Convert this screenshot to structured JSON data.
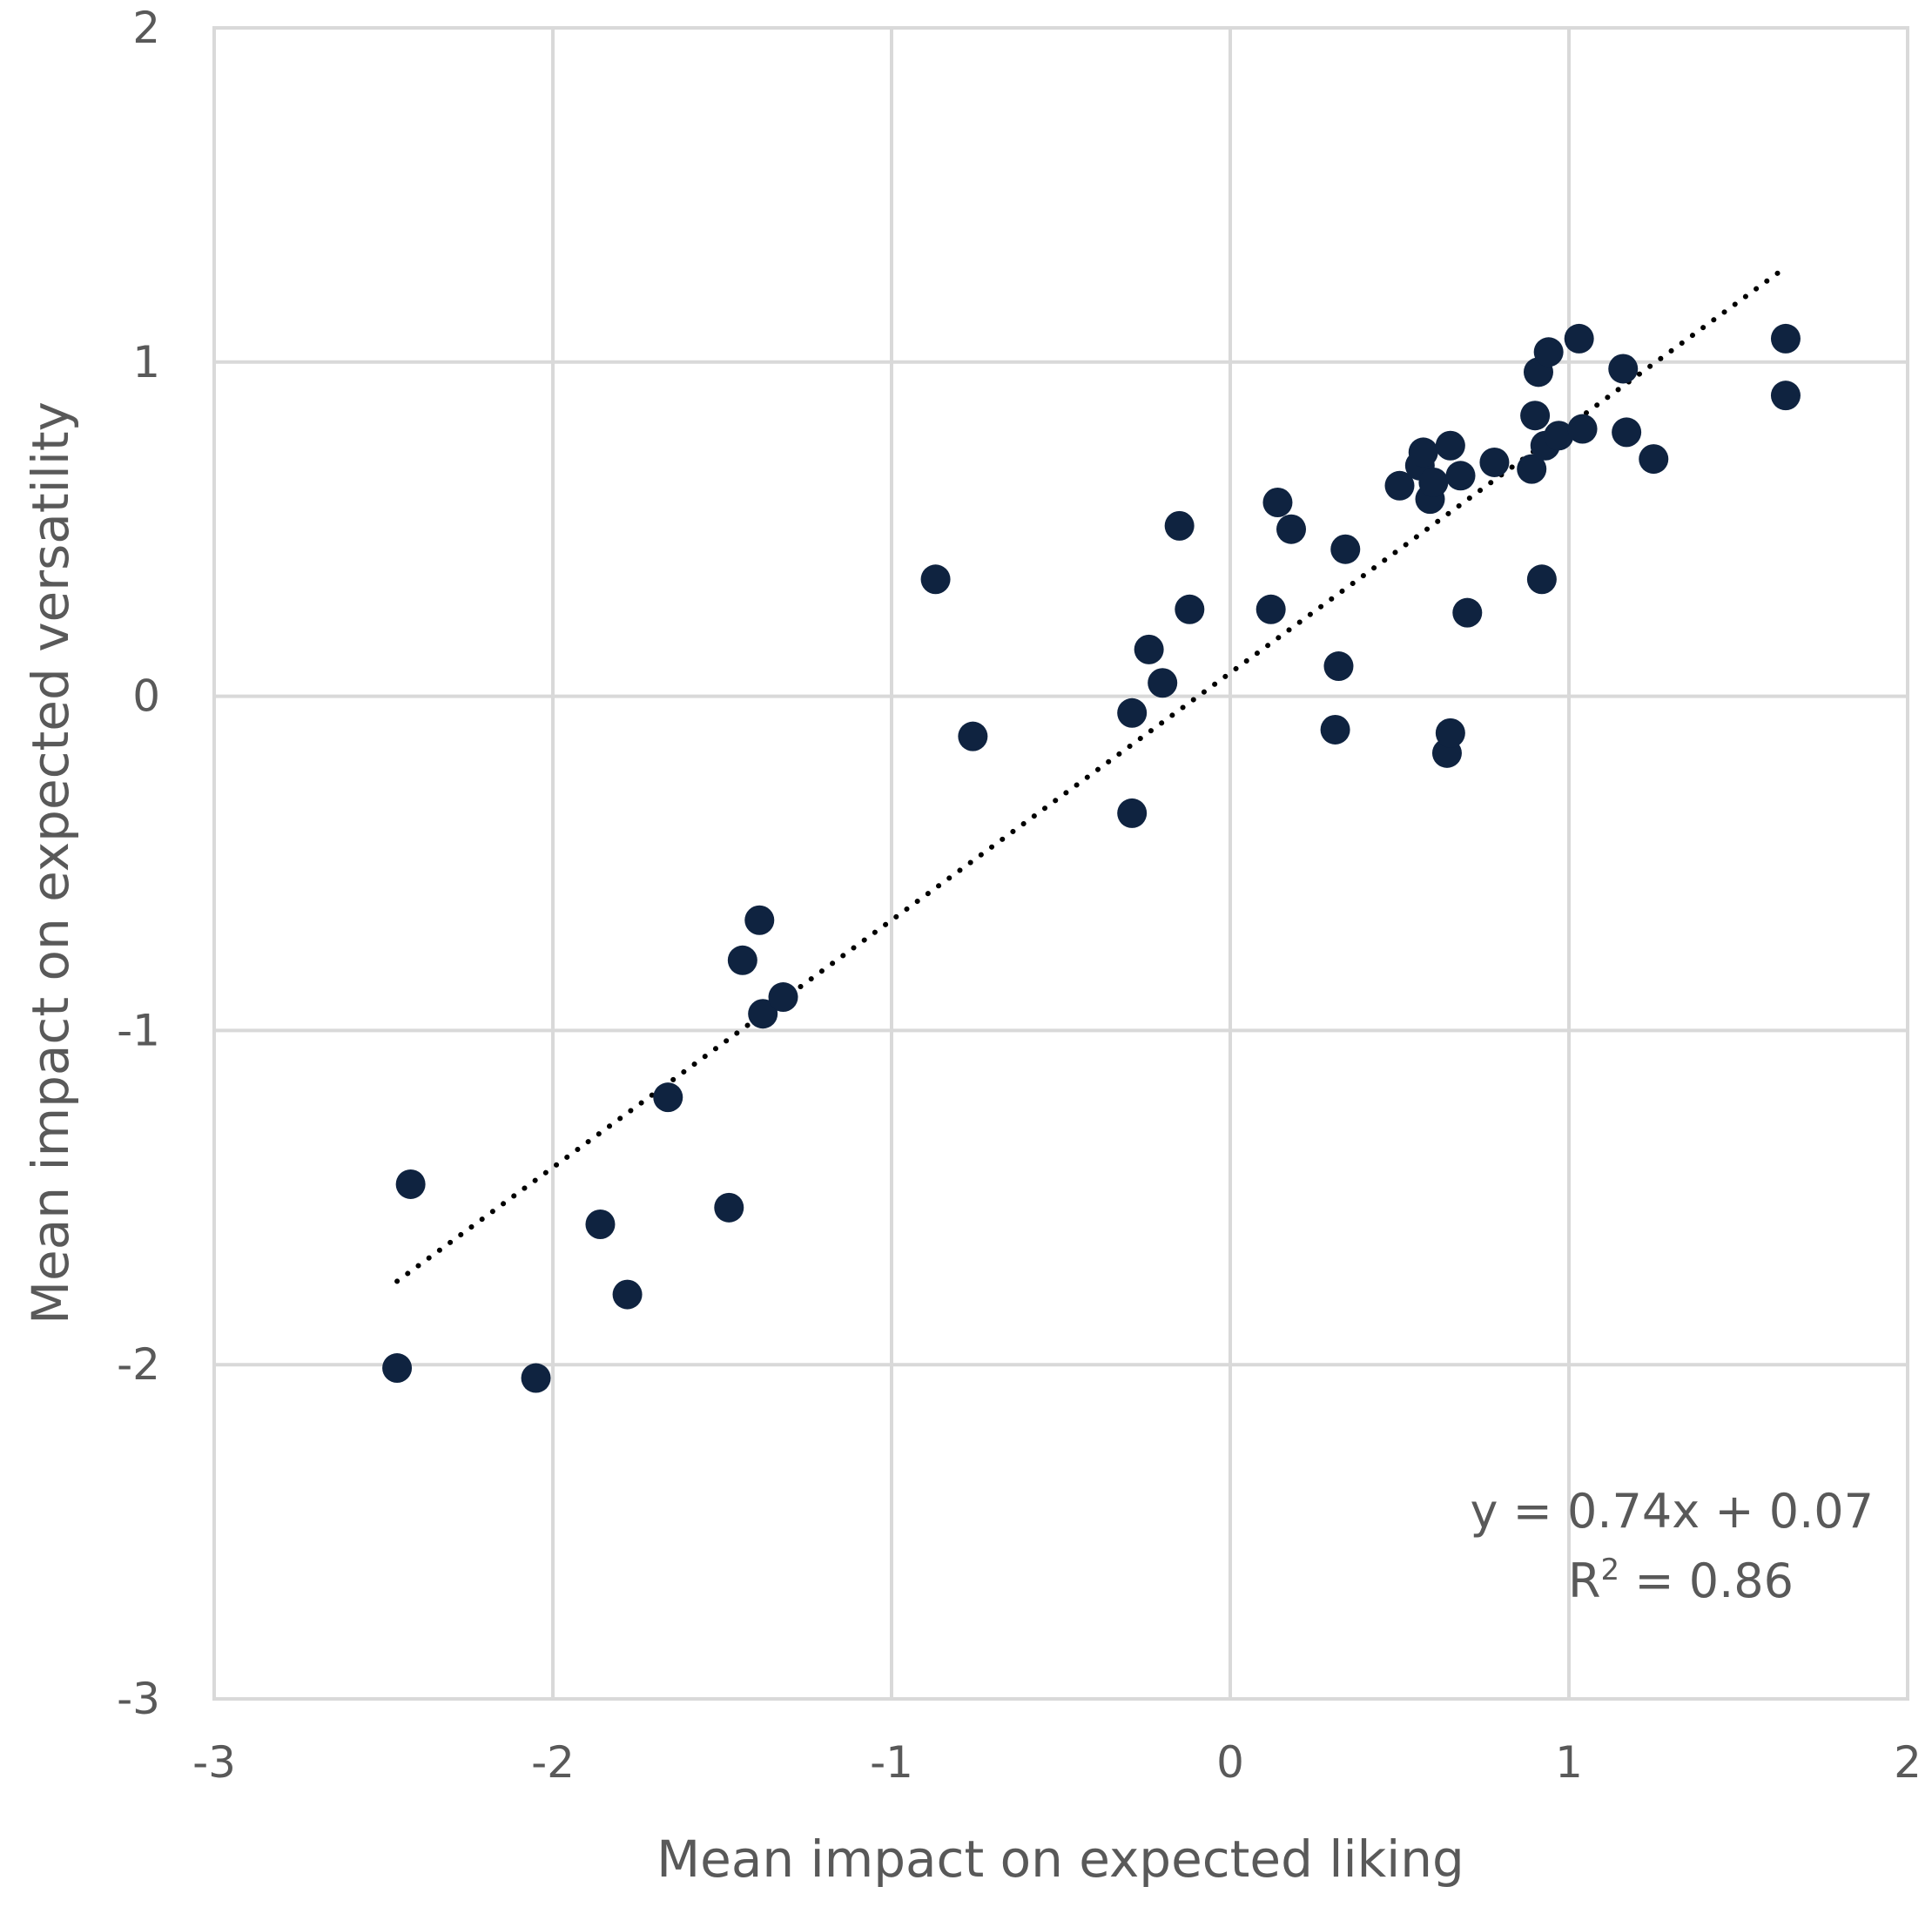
{
  "chart_data": {
    "type": "scatter",
    "title": "",
    "xlabel": "Mean impact on expected liking",
    "ylabel": "Mean impact on expected versatility",
    "xlim": [
      -3,
      2
    ],
    "ylim": [
      -3,
      2
    ],
    "xticks": [
      -3,
      -2,
      -1,
      0,
      1,
      2
    ],
    "yticks": [
      -3,
      -2,
      -1,
      0,
      1,
      2
    ],
    "grid": true,
    "legend": "none",
    "marker_color": "#0f2340",
    "points": [
      {
        "x": -2.46,
        "y": -2.01
      },
      {
        "x": -2.42,
        "y": -1.46
      },
      {
        "x": -2.05,
        "y": -2.04
      },
      {
        "x": -1.86,
        "y": -1.58
      },
      {
        "x": -1.78,
        "y": -1.79
      },
      {
        "x": -1.66,
        "y": -1.2
      },
      {
        "x": -1.48,
        "y": -1.53
      },
      {
        "x": -1.44,
        "y": -0.79
      },
      {
        "x": -1.39,
        "y": -0.67
      },
      {
        "x": -1.38,
        "y": -0.95
      },
      {
        "x": -1.32,
        "y": -0.9
      },
      {
        "x": -0.87,
        "y": 0.35
      },
      {
        "x": -0.76,
        "y": -0.12
      },
      {
        "x": -0.29,
        "y": -0.05
      },
      {
        "x": -0.29,
        "y": -0.35
      },
      {
        "x": -0.24,
        "y": 0.14
      },
      {
        "x": -0.2,
        "y": 0.04
      },
      {
        "x": -0.15,
        "y": 0.51
      },
      {
        "x": -0.12,
        "y": 0.26
      },
      {
        "x": 0.12,
        "y": 0.26
      },
      {
        "x": 0.14,
        "y": 0.58
      },
      {
        "x": 0.18,
        "y": 0.5
      },
      {
        "x": 0.31,
        "y": -0.1
      },
      {
        "x": 0.32,
        "y": 0.09
      },
      {
        "x": 0.34,
        "y": 0.44
      },
      {
        "x": 0.5,
        "y": 0.63
      },
      {
        "x": 0.56,
        "y": 0.69
      },
      {
        "x": 0.57,
        "y": 0.73
      },
      {
        "x": 0.59,
        "y": 0.59
      },
      {
        "x": 0.6,
        "y": 0.64
      },
      {
        "x": 0.64,
        "y": -0.17
      },
      {
        "x": 0.65,
        "y": -0.11
      },
      {
        "x": 0.65,
        "y": 0.75
      },
      {
        "x": 0.68,
        "y": 0.66
      },
      {
        "x": 0.7,
        "y": 0.25
      },
      {
        "x": 0.78,
        "y": 0.7
      },
      {
        "x": 0.89,
        "y": 0.68
      },
      {
        "x": 0.9,
        "y": 0.84
      },
      {
        "x": 0.91,
        "y": 0.97
      },
      {
        "x": 0.92,
        "y": 0.35
      },
      {
        "x": 0.93,
        "y": 0.75
      },
      {
        "x": 0.94,
        "y": 1.03
      },
      {
        "x": 0.97,
        "y": 0.78
      },
      {
        "x": 1.03,
        "y": 1.07
      },
      {
        "x": 1.04,
        "y": 0.8
      },
      {
        "x": 1.16,
        "y": 0.98
      },
      {
        "x": 1.17,
        "y": 0.79
      },
      {
        "x": 1.25,
        "y": 0.71
      },
      {
        "x": 1.64,
        "y": 1.07
      },
      {
        "x": 1.64,
        "y": 0.9
      }
    ],
    "trendline": {
      "style": "dotted",
      "slope": 0.74,
      "intercept": 0.07,
      "x_range": [
        -2.46,
        1.64
      ]
    },
    "annotations": {
      "equation": "y = 0.74x + 0.07",
      "r2_prefix": "R",
      "r2_superscript": "2",
      "r2_value": " = 0.86"
    }
  }
}
